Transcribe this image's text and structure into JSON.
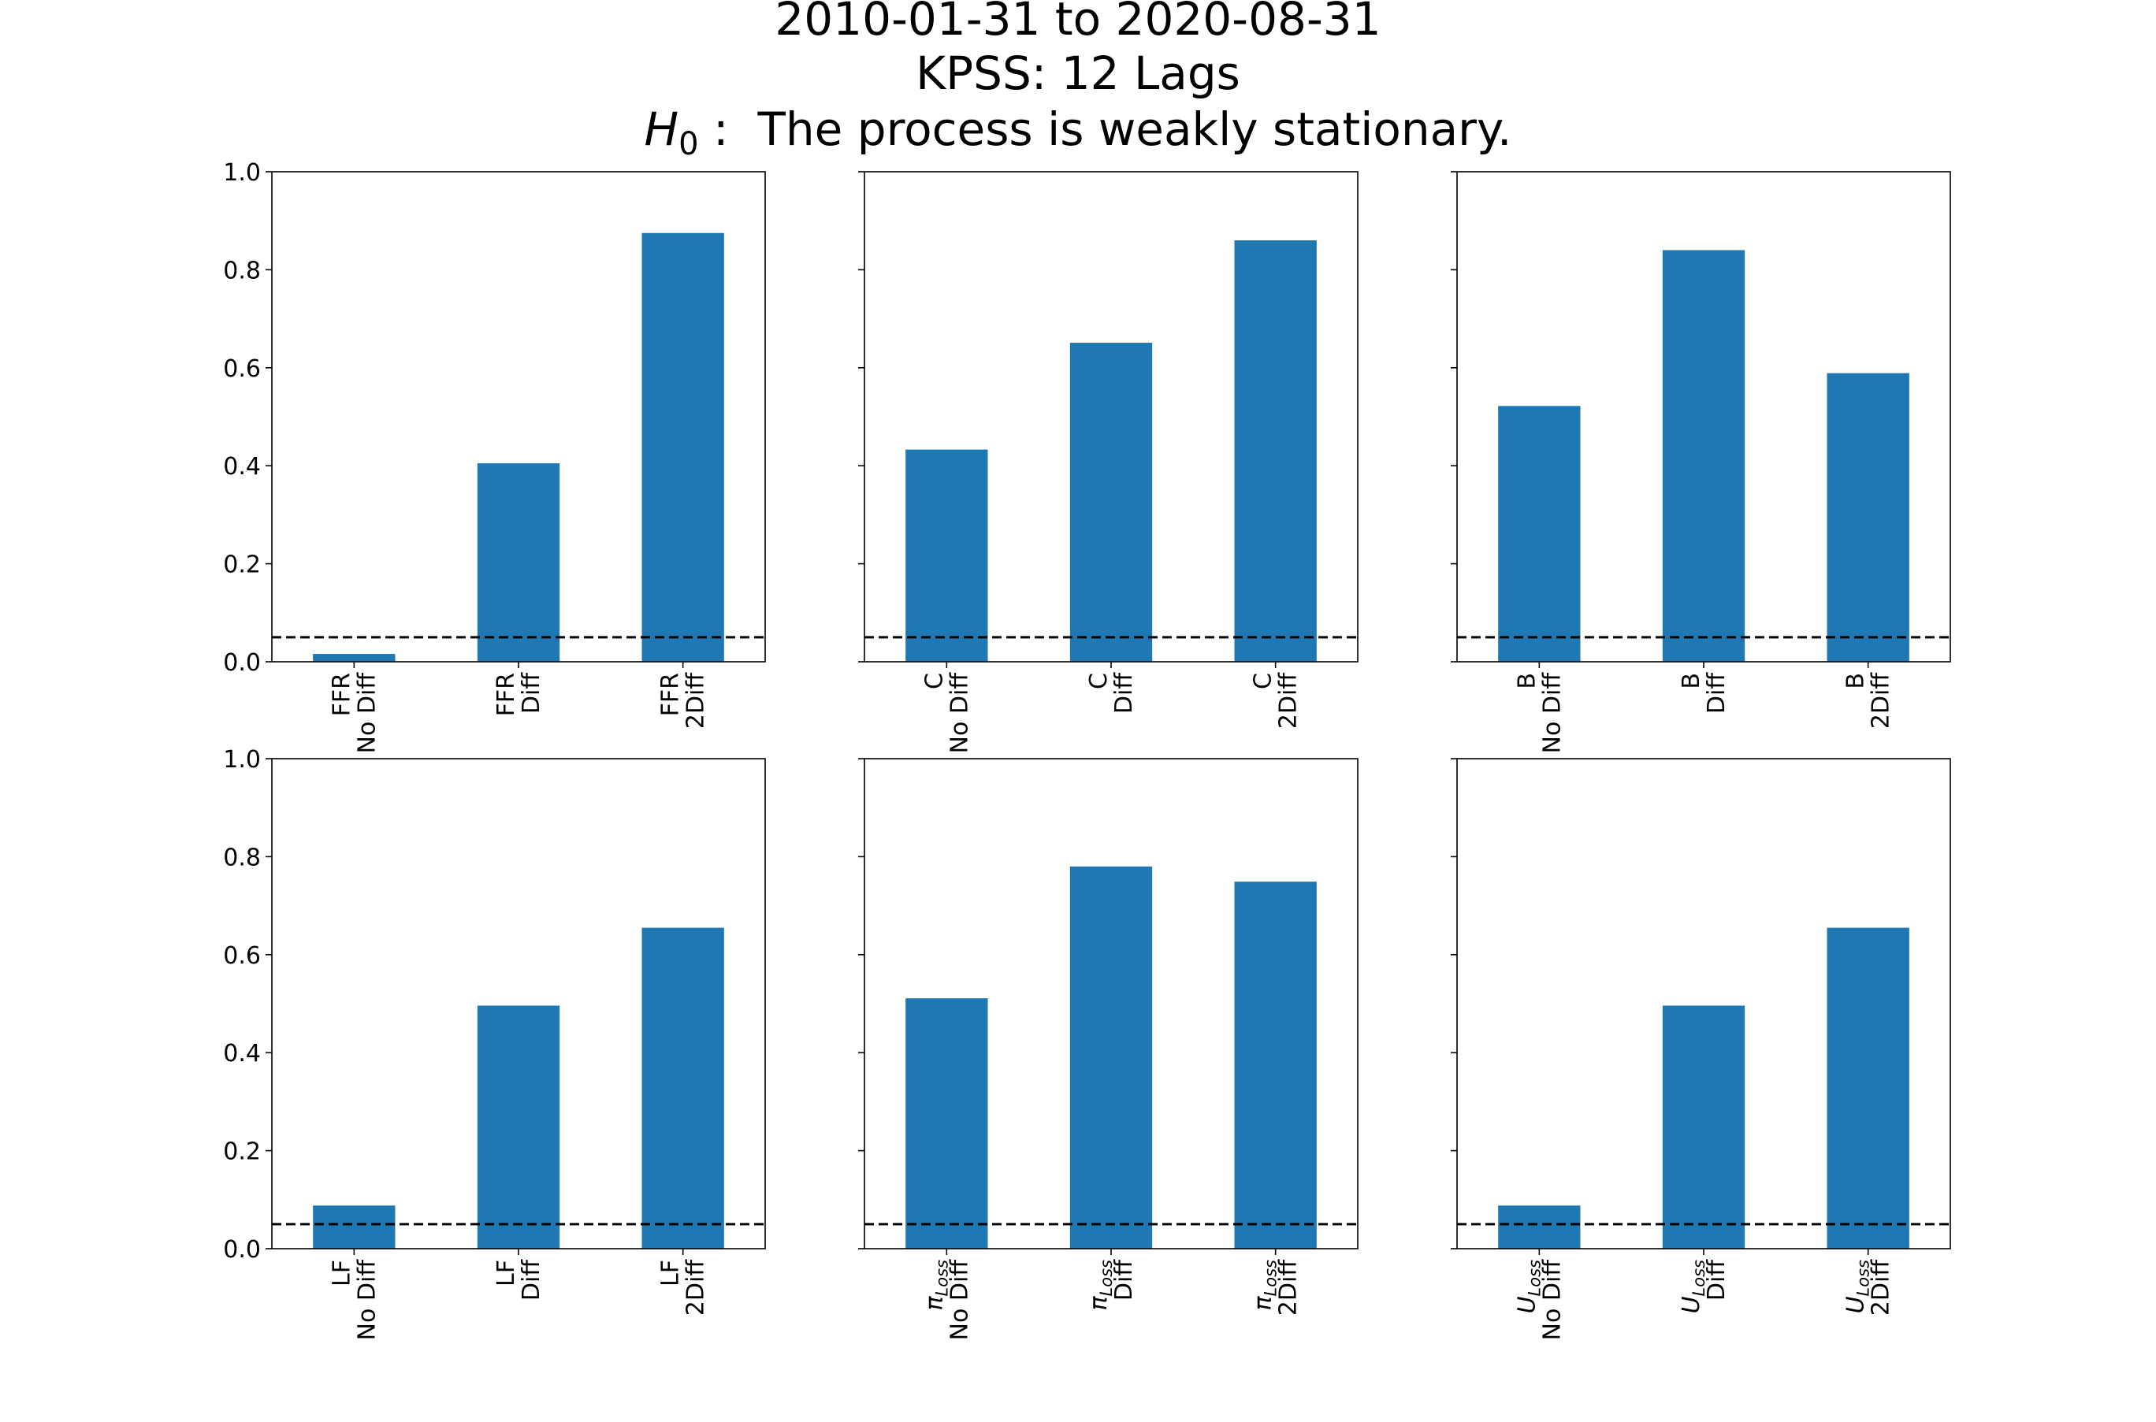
{
  "figure": {
    "title_line1": "2010-01-31 to 2020-08-31",
    "title_line2": "KPSS: 12 Lags",
    "title_line3_symbol": "H",
    "title_line3_subscript": "0",
    "title_line3_text": " :  The process is weakly stationary.",
    "threshold": 0.05,
    "bar_color": "#1f77b4",
    "threshold_color": "#000000"
  },
  "chart_data": [
    {
      "type": "bar",
      "title": "",
      "xlabel": "",
      "ylabel": "",
      "ylim": [
        0,
        1.0
      ],
      "yticks": [
        "0.0",
        "0.2",
        "0.4",
        "0.6",
        "0.8",
        "1.0"
      ],
      "grid": false,
      "categories": [
        {
          "variable": "FFR",
          "sub": "",
          "transform": "No Diff"
        },
        {
          "variable": "FFR",
          "sub": "",
          "transform": "Diff"
        },
        {
          "variable": "FFR",
          "sub": "",
          "transform": "2Diff"
        }
      ],
      "values": [
        0.016,
        0.405,
        0.875
      ],
      "reference_line": 0.05
    },
    {
      "type": "bar",
      "title": "",
      "xlabel": "",
      "ylabel": "",
      "ylim": [
        0,
        1.0
      ],
      "grid": false,
      "categories": [
        {
          "variable": "C",
          "sub": "",
          "transform": "No Diff"
        },
        {
          "variable": "C",
          "sub": "",
          "transform": "Diff"
        },
        {
          "variable": "C",
          "sub": "",
          "transform": "2Diff"
        }
      ],
      "values": [
        0.433,
        0.651,
        0.86
      ],
      "reference_line": 0.05
    },
    {
      "type": "bar",
      "title": "",
      "xlabel": "",
      "ylabel": "",
      "ylim": [
        0,
        1.0
      ],
      "grid": false,
      "categories": [
        {
          "variable": "B",
          "sub": "",
          "transform": "No Diff"
        },
        {
          "variable": "B",
          "sub": "",
          "transform": "Diff"
        },
        {
          "variable": "B",
          "sub": "",
          "transform": "2Diff"
        }
      ],
      "values": [
        0.522,
        0.84,
        0.589
      ],
      "reference_line": 0.05
    },
    {
      "type": "bar",
      "title": "",
      "xlabel": "",
      "ylabel": "",
      "ylim": [
        0,
        1.0
      ],
      "yticks": [
        "0.0",
        "0.2",
        "0.4",
        "0.6",
        "0.8",
        "1.0"
      ],
      "grid": false,
      "categories": [
        {
          "variable": "LF",
          "sub": "",
          "transform": "No Diff"
        },
        {
          "variable": "LF",
          "sub": "",
          "transform": "Diff"
        },
        {
          "variable": "LF",
          "sub": "",
          "transform": "2Diff"
        }
      ],
      "values": [
        0.088,
        0.496,
        0.655
      ],
      "reference_line": 0.05
    },
    {
      "type": "bar",
      "title": "",
      "xlabel": "",
      "ylabel": "",
      "ylim": [
        0,
        1.0
      ],
      "grid": false,
      "categories": [
        {
          "variable": "π",
          "sub": "Loss",
          "transform": "No Diff"
        },
        {
          "variable": "π",
          "sub": "Loss",
          "transform": "Diff"
        },
        {
          "variable": "π",
          "sub": "Loss",
          "transform": "2Diff"
        }
      ],
      "values": [
        0.511,
        0.78,
        0.749
      ],
      "reference_line": 0.05
    },
    {
      "type": "bar",
      "title": "",
      "xlabel": "",
      "ylabel": "",
      "ylim": [
        0,
        1.0
      ],
      "grid": false,
      "categories": [
        {
          "variable": "U",
          "sub": "Loss",
          "transform": "No Diff"
        },
        {
          "variable": "U",
          "sub": "Loss",
          "transform": "Diff"
        },
        {
          "variable": "U",
          "sub": "Loss",
          "transform": "2Diff"
        }
      ],
      "values": [
        0.088,
        0.496,
        0.655
      ],
      "reference_line": 0.05
    }
  ]
}
